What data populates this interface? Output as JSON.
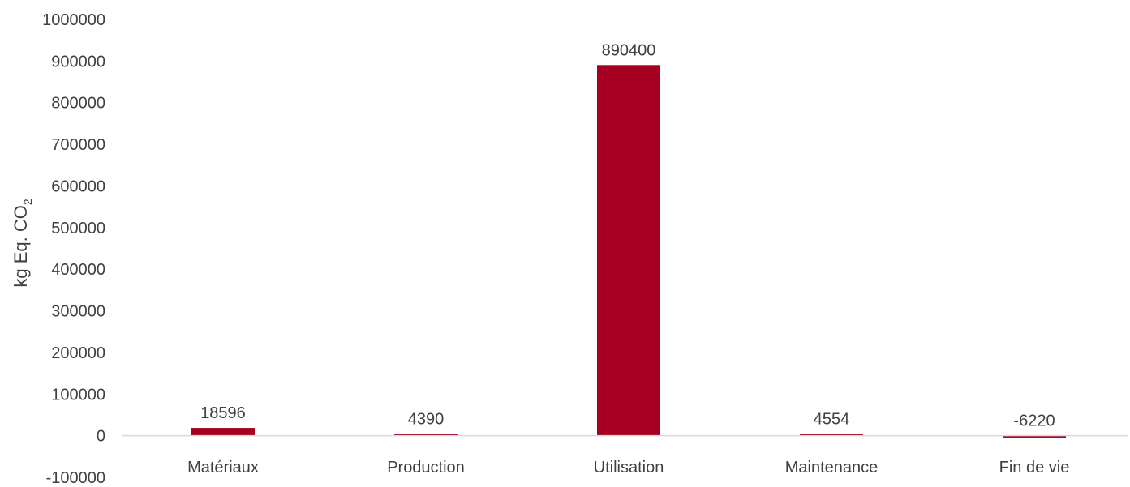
{
  "chart_data": {
    "type": "bar",
    "categories": [
      "Matériaux",
      "Production",
      "Utilisation",
      "Maintenance",
      "Fin de vie"
    ],
    "values": [
      18596,
      4390,
      890400,
      4554,
      -6220
    ],
    "data_labels": [
      "18596",
      "4390",
      "890400",
      "4554",
      "-6220"
    ],
    "ylabel_main": "kg Eq. CO",
    "ylabel_sub": "2",
    "ylim": [
      -100000,
      1000000
    ],
    "yticks": [
      1000000,
      900000,
      800000,
      700000,
      600000,
      500000,
      400000,
      300000,
      200000,
      100000,
      0,
      -100000
    ],
    "grid": false,
    "legend": "none",
    "colors": {
      "bar": "#A50021",
      "axis": "#D9D9D9",
      "text": "#404040"
    }
  }
}
